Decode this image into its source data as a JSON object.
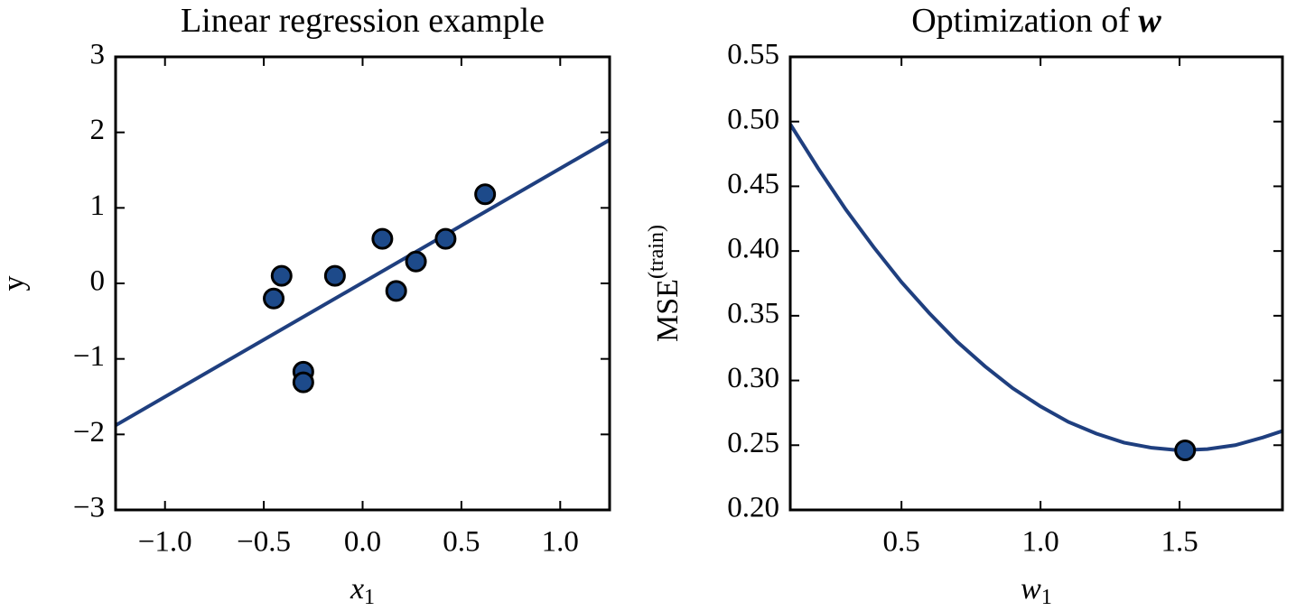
{
  "chart_data": [
    {
      "type": "scatter",
      "title": "Linear regression example",
      "xlabel": "x",
      "xlabel_sub": "1",
      "ylabel": "y",
      "xlim": [
        -1.25,
        1.25
      ],
      "xticks": [
        {
          "value": -1,
          "label": "−1.0"
        },
        {
          "value": -0.5,
          "label": "−0.5"
        },
        {
          "value": 0,
          "label": "0.0"
        },
        0.5,
        {
          "value": 1,
          "label": "1.0"
        }
      ],
      "ylim": [
        -3,
        3
      ],
      "yticks": [
        {
          "value": -3,
          "label": "−3"
        },
        {
          "value": -2,
          "label": "−2"
        },
        {
          "value": -1,
          "label": "−1"
        },
        0,
        1,
        2,
        3
      ],
      "series": [
        {
          "type": "line",
          "color": "#1f3f7f",
          "x": [
            -1.25,
            1.25
          ],
          "values": [
            -1.88,
            1.9
          ]
        },
        {
          "type": "scatter",
          "color": "#1d4a8a",
          "x": [
            -0.45,
            -0.41,
            -0.14,
            -0.3,
            -0.3,
            0.1,
            0.17,
            0.27,
            0.42,
            0.62
          ],
          "values": [
            -0.2,
            0.1,
            0.1,
            -1.17,
            -1.31,
            0.59,
            -0.1,
            0.29,
            0.59,
            1.18
          ]
        }
      ]
    },
    {
      "type": "line",
      "title": "Optimization of",
      "title_math": "w",
      "xlabel": "w",
      "xlabel_sub": "1",
      "ylabel": "MSE",
      "ylabel_sup": "(train)",
      "xlim": [
        0.1,
        1.87
      ],
      "xticks": [
        0.5,
        {
          "value": 1,
          "label": "1.0"
        },
        1.5
      ],
      "ylim": [
        0.2,
        0.55
      ],
      "yticks": [
        {
          "value": 0.2,
          "label": "0.20"
        },
        0.25,
        {
          "value": 0.3,
          "label": "0.30"
        },
        0.35,
        {
          "value": 0.4,
          "label": "0.40"
        },
        0.45,
        {
          "value": 0.5,
          "label": "0.50"
        },
        0.55
      ],
      "series": [
        {
          "type": "line",
          "color": "#1f3f7f",
          "x": [
            0.1,
            0.2,
            0.3,
            0.4,
            0.5,
            0.6,
            0.7,
            0.8,
            0.9,
            1.0,
            1.1,
            1.2,
            1.3,
            1.4,
            1.5,
            1.6,
            1.7,
            1.8,
            1.87
          ],
          "values": [
            0.498,
            0.464,
            0.432,
            0.403,
            0.376,
            0.352,
            0.33,
            0.311,
            0.294,
            0.28,
            0.268,
            0.259,
            0.252,
            0.248,
            0.246,
            0.247,
            0.25,
            0.256,
            0.261
          ]
        },
        {
          "type": "scatter",
          "color": "#1d4a8a",
          "x": [
            1.52
          ],
          "values": [
            0.246
          ]
        }
      ]
    }
  ]
}
